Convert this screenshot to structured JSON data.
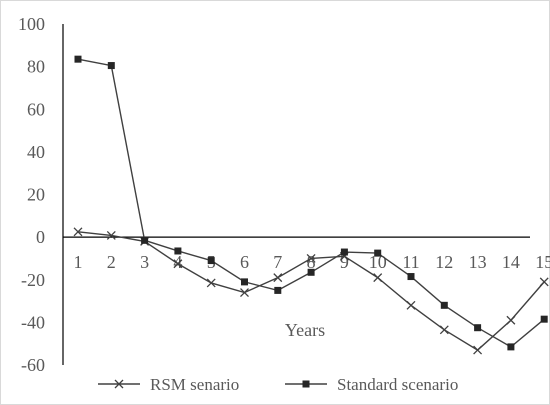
{
  "chart_data": {
    "type": "line",
    "title": "",
    "xlabel": "Years",
    "ylabel": "",
    "categories": [
      "1",
      "2",
      "3",
      "4",
      "5",
      "6",
      "7",
      "8",
      "9",
      "10",
      "11",
      "12",
      "13",
      "14",
      "15"
    ],
    "ylim": [
      -60,
      100
    ],
    "yticks": [
      100,
      80,
      60,
      40,
      20,
      0,
      -20,
      -40,
      -60
    ],
    "grid": false,
    "legend_position": "bottom",
    "series": [
      {
        "name": "RSM senario",
        "marker": "x",
        "color": "#404040",
        "values": [
          2.5,
          0.8,
          -2,
          -12.5,
          -21.5,
          -26,
          -19,
          -10,
          -9,
          -19,
          -32,
          -43.5,
          -53,
          -39,
          -21
        ]
      },
      {
        "name": "Standard scenario",
        "marker": "square",
        "color": "#404040",
        "values": [
          83.5,
          80.5,
          -1.5,
          -6.5,
          -11,
          -21,
          -25,
          -16.5,
          -7,
          -7.5,
          -18.5,
          -32,
          -42.5,
          -51.5,
          -38.5
        ]
      }
    ]
  }
}
